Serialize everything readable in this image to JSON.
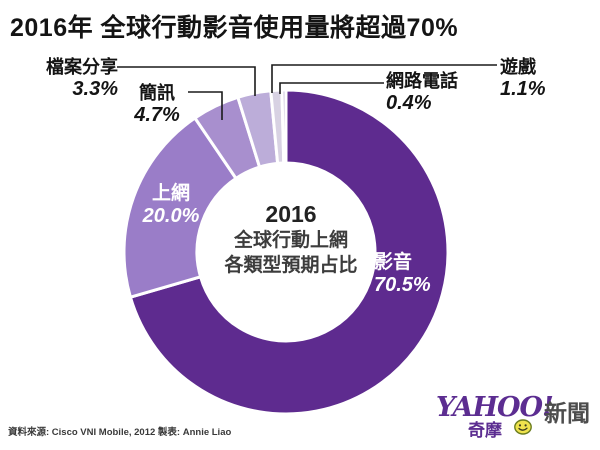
{
  "title": "2016年 全球行動影音使用量將超過70%",
  "chart_data": {
    "type": "pie",
    "donut": true,
    "title": "2016年 全球行動影音使用量將超過70%",
    "unit": "%",
    "start_angle_deg": 0,
    "direction": "clockwise",
    "inner_radius_ratio": 0.55,
    "center_label": {
      "line1": "2016",
      "line2": "全球行動上網",
      "line3": "各類型預期占比"
    },
    "slices": [
      {
        "label": "影音",
        "value": 70.5,
        "pct": "70.5%",
        "color": "#5e2b8f",
        "label_style": "inside"
      },
      {
        "label": "上網",
        "value": 20.0,
        "pct": "20.0%",
        "color": "#9a7dc8",
        "label_style": "inside"
      },
      {
        "label": "簡訊",
        "value": 4.7,
        "pct": "4.7%",
        "color": "#a88fce",
        "label_style": "callout"
      },
      {
        "label": "檔案分享",
        "value": 3.3,
        "pct": "3.3%",
        "color": "#bcadd9",
        "label_style": "callout"
      },
      {
        "label": "遊戲",
        "value": 1.1,
        "pct": "1.1%",
        "color": "#d8d2e3",
        "label_style": "callout"
      },
      {
        "label": "網路電話",
        "value": 0.4,
        "pct": "0.4%",
        "color": "#cbc3db",
        "label_style": "callout"
      }
    ]
  },
  "footer": {
    "source": "資料來源: Cisco VNI Mobile, 2012  製表: Annie Liao"
  },
  "logo": {
    "yahoo": "YAHOO!",
    "kimo": "奇摩",
    "news": "新聞",
    "smiley_icon": "smiley-icon",
    "brand_color": "#5c2d91"
  }
}
